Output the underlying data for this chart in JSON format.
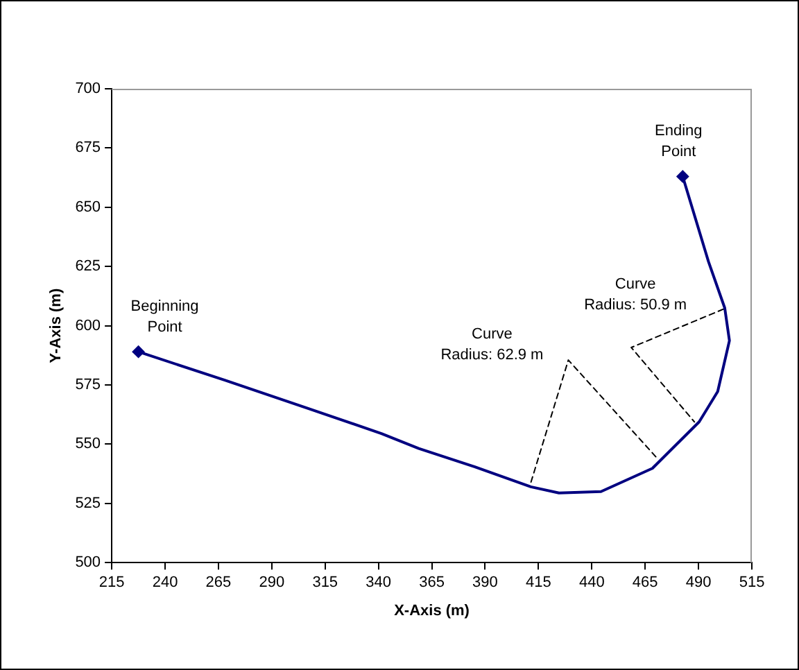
{
  "chart_data": {
    "type": "line",
    "xlabel": "X-Axis (m)",
    "ylabel": "Y-Axis (m)",
    "xlim": [
      215,
      515
    ],
    "xticks": [
      215,
      240,
      265,
      290,
      315,
      340,
      365,
      390,
      415,
      440,
      465,
      490,
      515
    ],
    "ylim": [
      500,
      700
    ],
    "yticks": [
      500,
      525,
      550,
      575,
      600,
      625,
      650,
      675,
      700
    ],
    "grid": false,
    "legend": false,
    "series": [
      {
        "color": "#000080",
        "marker": "none",
        "line_style": "solid",
        "x": [
          227.5,
          268,
          306.3,
          341.4,
          358.9,
          385.2,
          411.4,
          424.6,
          444.3,
          468.4,
          490.3,
          499,
          504.5,
          502.3,
          494.7,
          482.6
        ],
        "values": [
          589,
          577,
          565.3,
          554.5,
          548.2,
          540.4,
          532,
          529.4,
          530,
          539.8,
          559.4,
          572.2,
          593.7,
          607.5,
          627,
          663
        ]
      },
      {
        "type": "scatter",
        "color": "#000080",
        "marker": "diamond",
        "x": [
          227.5,
          482.6
        ],
        "values": [
          589,
          663
        ]
      },
      {
        "type": "line",
        "color": "#000000",
        "marker": "none",
        "line_style": "dashed",
        "x": [
          411.5,
          429,
          471
        ],
        "values": [
          534,
          585.5,
          543.7
        ]
      },
      {
        "type": "line",
        "color": "#000000",
        "marker": "none",
        "line_style": "dashed",
        "x": [
          501.7,
          458.5,
          488.1
        ],
        "values": [
          607,
          590.8,
          559.4
        ]
      }
    ],
    "annotations": [
      {
        "text": "Beginning\nPoint",
        "x": 227.5,
        "y": 589
      },
      {
        "text": "Ending\nPoint",
        "x": 482.6,
        "y": 663
      },
      {
        "text": "Curve\nRadius: 62.9 m",
        "x": 429,
        "y": 585.5
      },
      {
        "text": "Curve\nRadius: 50.9 m",
        "x": 458.5,
        "y": 590.8
      }
    ]
  }
}
